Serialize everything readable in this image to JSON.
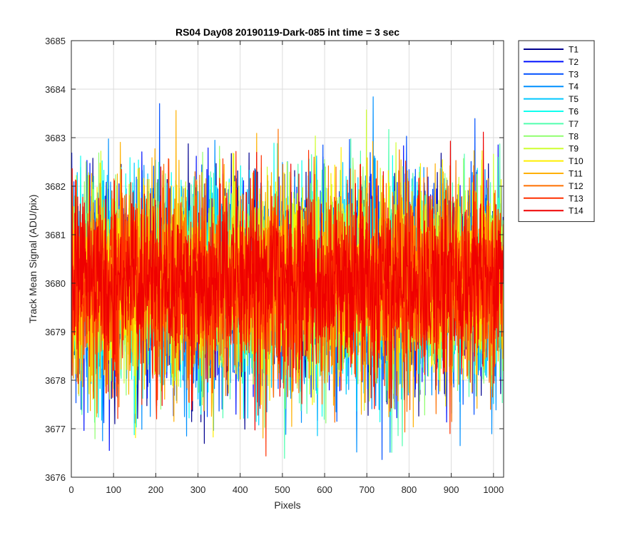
{
  "chart_data": {
    "type": "line",
    "title": "RS04 Day08 20190119-Dark-085 int time = 3 sec",
    "xlabel": "Pixels",
    "ylabel": "Track Mean Signal (ADU/pix)",
    "xlim": [
      0,
      1024
    ],
    "ylim": [
      3676,
      3685
    ],
    "xticks": [
      0,
      100,
      200,
      300,
      400,
      500,
      600,
      700,
      800,
      900,
      1000
    ],
    "yticks": [
      3676,
      3677,
      3678,
      3679,
      3680,
      3681,
      3682,
      3683,
      3684,
      3685
    ],
    "grid": true,
    "legend_position": "outside top-right",
    "n_points": 1024,
    "series": [
      {
        "name": "T1",
        "color": "#00008F",
        "mean": 3680.0,
        "noise": 1.05
      },
      {
        "name": "T2",
        "color": "#0010FF",
        "mean": 3680.0,
        "noise": 1.05
      },
      {
        "name": "T3",
        "color": "#0050FF",
        "mean": 3680.0,
        "noise": 1.05
      },
      {
        "name": "T4",
        "color": "#0090FF",
        "mean": 3680.0,
        "noise": 1.05
      },
      {
        "name": "T5",
        "color": "#00C8FF",
        "mean": 3680.0,
        "noise": 1.05
      },
      {
        "name": "T6",
        "color": "#10FFEF",
        "mean": 3680.0,
        "noise": 1.0
      },
      {
        "name": "T7",
        "color": "#50FFAF",
        "mean": 3680.0,
        "noise": 1.0
      },
      {
        "name": "T8",
        "color": "#90FF6F",
        "mean": 3680.0,
        "noise": 1.0
      },
      {
        "name": "T9",
        "color": "#CFFF30",
        "mean": 3680.0,
        "noise": 1.0
      },
      {
        "name": "T10",
        "color": "#FFEF00",
        "mean": 3680.0,
        "noise": 1.0
      },
      {
        "name": "T11",
        "color": "#FFB000",
        "mean": 3680.0,
        "noise": 1.0
      },
      {
        "name": "T12",
        "color": "#FF7000",
        "mean": 3680.0,
        "noise": 1.0
      },
      {
        "name": "T13",
        "color": "#FF3000",
        "mean": 3680.0,
        "noise": 0.95
      },
      {
        "name": "T14",
        "color": "#EF0000",
        "mean": 3680.0,
        "noise": 0.9
      }
    ]
  }
}
